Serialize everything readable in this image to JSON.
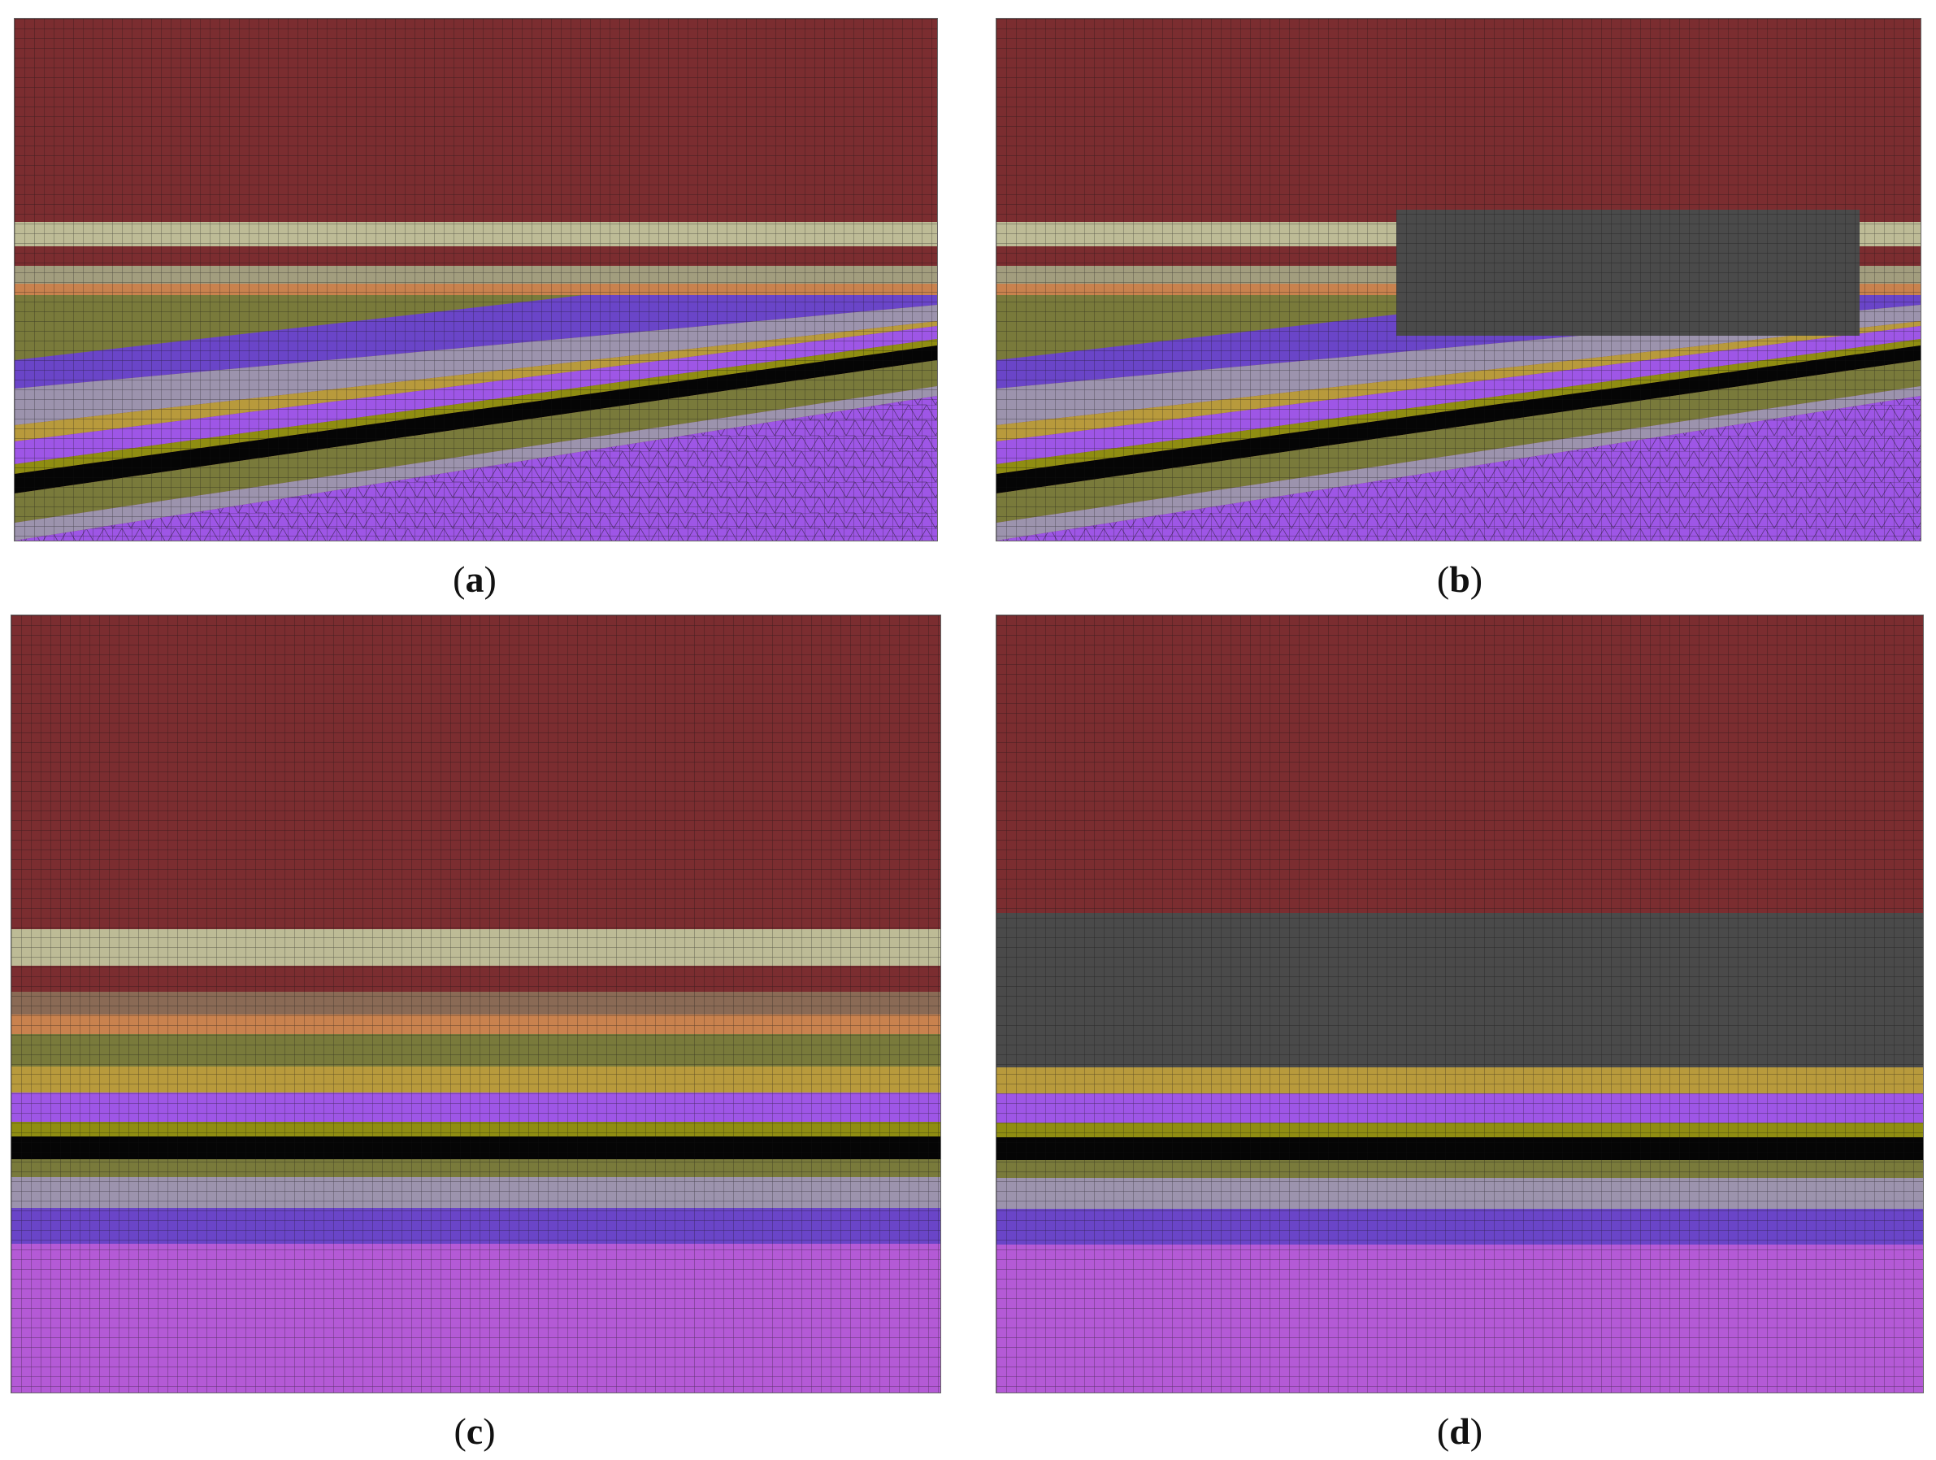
{
  "figure": {
    "panels": [
      {
        "id": "a",
        "letter": "a",
        "variant": "inclined"
      },
      {
        "id": "b",
        "letter": "b",
        "variant": "inclined-with-block"
      },
      {
        "id": "c",
        "letter": "c",
        "variant": "horizontal"
      },
      {
        "id": "d",
        "letter": "d",
        "variant": "horizontal-with-block"
      }
    ]
  },
  "colors": {
    "overburden": "#7b2d30",
    "sand_light": "#bdbb96",
    "brown_layer": "#8a6a55",
    "orange_layer": "#c9824e",
    "olive_layer": "#797a3b",
    "gold_layer": "#b89a3c",
    "violet_layer": "#9e56e6",
    "yellow_olive": "#8f8d12",
    "coal": "#050505",
    "grey_layer": "#9c93ad",
    "indigo_layer": "#6a45c8",
    "magenta_base": "#b45ad6",
    "block_grey": "#4a4a4a",
    "mesh_line": "#111111"
  }
}
